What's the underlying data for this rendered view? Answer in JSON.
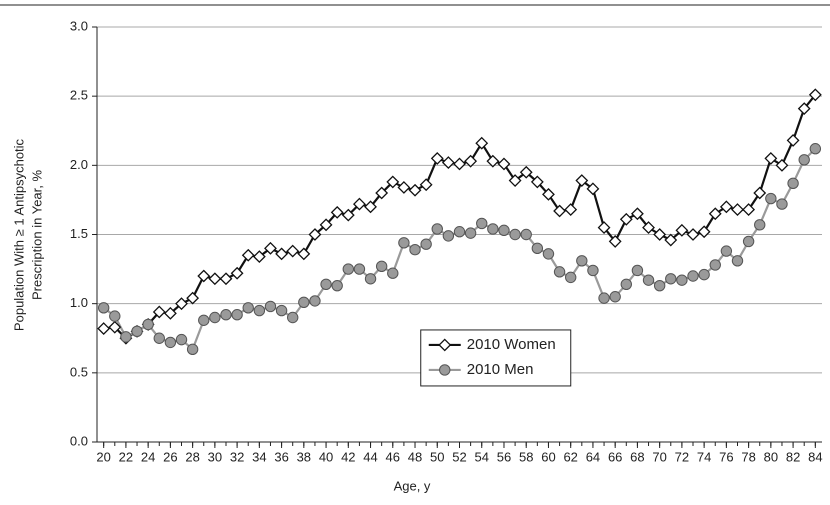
{
  "chart_data": {
    "type": "line",
    "x_label": "Age, y",
    "y_label": [
      "Population With ≥ 1 Antipsychotic",
      "Prescription in Year, %"
    ],
    "x": [
      20,
      21,
      22,
      23,
      24,
      25,
      26,
      27,
      28,
      29,
      30,
      31,
      32,
      33,
      34,
      35,
      36,
      37,
      38,
      39,
      40,
      41,
      42,
      43,
      44,
      45,
      46,
      47,
      48,
      49,
      50,
      51,
      52,
      53,
      54,
      55,
      56,
      57,
      58,
      59,
      60,
      61,
      62,
      63,
      64,
      65,
      66,
      67,
      68,
      69,
      70,
      71,
      72,
      73,
      74,
      75,
      76,
      77,
      78,
      79,
      80,
      81,
      82,
      83,
      84
    ],
    "series": [
      {
        "name": "2010 Women",
        "color": "#111111",
        "marker": "diamond",
        "marker_fill": "#ffffff",
        "values": [
          0.82,
          0.83,
          0.75,
          0.8,
          0.85,
          0.94,
          0.93,
          1.0,
          1.04,
          1.2,
          1.18,
          1.18,
          1.22,
          1.35,
          1.34,
          1.4,
          1.36,
          1.38,
          1.36,
          1.5,
          1.57,
          1.66,
          1.64,
          1.72,
          1.7,
          1.8,
          1.88,
          1.84,
          1.82,
          1.86,
          2.05,
          2.02,
          2.01,
          2.03,
          2.16,
          2.03,
          2.01,
          1.89,
          1.95,
          1.88,
          1.79,
          1.67,
          1.68,
          1.89,
          1.83,
          1.55,
          1.45,
          1.61,
          1.65,
          1.55,
          1.5,
          1.46,
          1.53,
          1.5,
          1.52,
          1.65,
          1.7,
          1.68,
          1.68,
          1.8,
          2.05,
          2.0,
          2.18,
          2.41,
          2.51
        ]
      },
      {
        "name": "2010 Men",
        "color": "#9a9a9a",
        "marker": "circle",
        "marker_fill": "#9a9a9a",
        "values": [
          0.97,
          0.91,
          0.76,
          0.8,
          0.85,
          0.75,
          0.72,
          0.74,
          0.67,
          0.88,
          0.9,
          0.92,
          0.92,
          0.97,
          0.95,
          0.98,
          0.95,
          0.9,
          1.01,
          1.02,
          1.14,
          1.13,
          1.25,
          1.25,
          1.18,
          1.27,
          1.22,
          1.44,
          1.39,
          1.43,
          1.54,
          1.49,
          1.52,
          1.51,
          1.58,
          1.54,
          1.53,
          1.5,
          1.5,
          1.4,
          1.36,
          1.23,
          1.19,
          1.31,
          1.24,
          1.04,
          1.05,
          1.14,
          1.24,
          1.17,
          1.13,
          1.18,
          1.17,
          1.2,
          1.21,
          1.28,
          1.38,
          1.31,
          1.45,
          1.57,
          1.76,
          1.72,
          1.87,
          2.04,
          2.12
        ]
      }
    ],
    "xlim": [
      19.4,
      84.6
    ],
    "xticks": [
      20,
      22,
      24,
      26,
      28,
      30,
      32,
      34,
      36,
      38,
      40,
      42,
      44,
      46,
      48,
      50,
      52,
      54,
      56,
      58,
      60,
      62,
      64,
      66,
      68,
      70,
      72,
      74,
      76,
      78,
      80,
      82,
      84
    ],
    "ylim": [
      0,
      3
    ],
    "yticks": [
      {
        "value": 0,
        "label": "0.0"
      },
      0.5,
      {
        "value": 1,
        "label": "1.0"
      },
      1.5,
      {
        "value": 2,
        "label": "2.0"
      },
      2.5,
      {
        "value": 3,
        "label": "3.0"
      }
    ],
    "grid": true,
    "legend": "lower center"
  }
}
